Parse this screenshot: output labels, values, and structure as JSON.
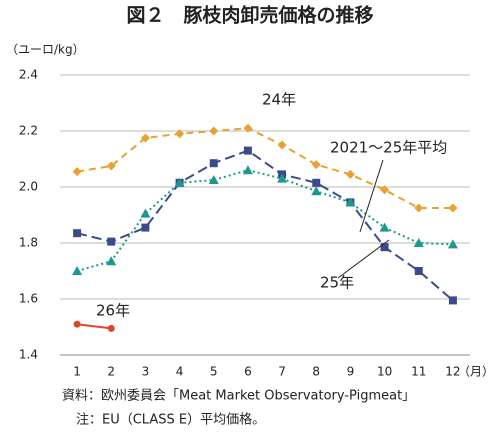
{
  "chart_data": {
    "type": "line",
    "title": "図２　豚枝肉卸売価格の推移",
    "y_label": "（ユーロ/kg）",
    "x_label": "（月）",
    "categories": [
      "1",
      "2",
      "3",
      "4",
      "5",
      "6",
      "7",
      "8",
      "9",
      "10",
      "11",
      "12"
    ],
    "series": [
      {
        "name": "24年",
        "color": "#e8a232",
        "marker": "diamond",
        "dash": "7,5",
        "values": [
          2.055,
          2.075,
          2.175,
          2.19,
          2.2,
          2.21,
          2.15,
          2.08,
          2.045,
          1.99,
          1.925,
          1.925
        ]
      },
      {
        "name": "25年",
        "color": "#3b4a8c",
        "marker": "square",
        "dash": "10,5",
        "values": [
          1.835,
          1.805,
          1.855,
          2.015,
          2.085,
          2.13,
          2.045,
          2.015,
          1.945,
          1.785,
          1.7,
          1.595
        ]
      },
      {
        "name": "2021～25年平均",
        "color": "#1a9a8c",
        "marker": "triangle",
        "dash": "2,3",
        "values": [
          1.7,
          1.735,
          1.905,
          2.015,
          2.025,
          2.06,
          2.03,
          1.985,
          1.945,
          1.855,
          1.8,
          1.795
        ]
      },
      {
        "name": "26年",
        "color": "#e0452a",
        "marker": "circle",
        "dash": "none",
        "values": [
          1.51,
          1.495,
          null,
          null,
          null,
          null,
          null,
          null,
          null,
          null,
          null,
          null
        ]
      }
    ],
    "ylim": [
      1.4,
      2.4
    ],
    "yticks": [
      1.4,
      1.6,
      1.8,
      {
        "value": 2,
        "label": "2.0"
      },
      2.2,
      2.4
    ],
    "grid": true,
    "notes": [
      "資料：欧州委員会「Meat Market Observatory-Pigmeat」",
      "注：EU（CLASS E）平均価格。"
    ]
  }
}
